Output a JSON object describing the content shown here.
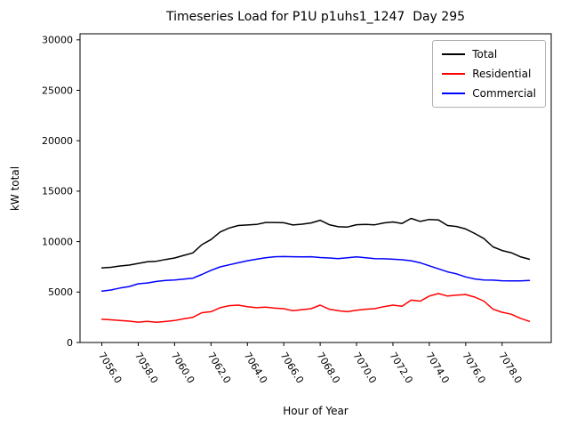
{
  "chart_data": {
    "type": "line",
    "title": "Timeseries Load for P1U p1uhs1_1247  Day 295",
    "xlabel": "Hour of Year",
    "ylabel": "kW total",
    "xlim": [
      7054.8,
      7080.7
    ],
    "ylim": [
      0,
      30600
    ],
    "grid": false,
    "legend_position": "upper right",
    "xticks": {
      "values": [
        7056,
        7058,
        7060,
        7062,
        7064,
        7066,
        7068,
        7070,
        7072,
        7074,
        7076,
        7078
      ],
      "labels": [
        "7056.0",
        "7058.0",
        "7060.0",
        "7062.0",
        "7064.0",
        "7066.0",
        "7068.0",
        "7070.0",
        "7072.0",
        "7074.0",
        "7076.0",
        "7078.0"
      ]
    },
    "yticks": {
      "values": [
        0,
        5000,
        10000,
        15000,
        20000,
        25000,
        30000
      ],
      "labels": [
        "0",
        "5000",
        "10000",
        "15000",
        "20000",
        "25000",
        "30000"
      ]
    },
    "x": [
      7056,
      7056.5,
      7057,
      7057.5,
      7058,
      7058.5,
      7059,
      7059.5,
      7060,
      7060.5,
      7061,
      7061.5,
      7062,
      7062.5,
      7063,
      7063.5,
      7064,
      7064.5,
      7065,
      7065.5,
      7066,
      7066.5,
      7067,
      7067.5,
      7068,
      7068.5,
      7069,
      7069.5,
      7070,
      7070.5,
      7071,
      7071.5,
      7072,
      7072.5,
      7073,
      7073.5,
      7074,
      7074.5,
      7075,
      7075.5,
      7076,
      7076.5,
      7077,
      7077.5,
      7078,
      7078.5,
      7079,
      7079.5
    ],
    "series": [
      {
        "name": "Total",
        "color": "#000000",
        "values": [
          7400,
          7450,
          7580,
          7670,
          7840,
          8000,
          8050,
          8230,
          8380,
          8630,
          8880,
          9700,
          10200,
          10950,
          11350,
          11600,
          11650,
          11700,
          11900,
          11900,
          11870,
          11650,
          11730,
          11850,
          12120,
          11680,
          11470,
          11450,
          11680,
          11700,
          11670,
          11850,
          11950,
          11800,
          12300,
          12000,
          12200,
          12150,
          11600,
          11500,
          11250,
          10800,
          10300,
          9480,
          9120,
          8900,
          8500,
          8250
        ]
      },
      {
        "name": "Residential",
        "color": "#ff0000",
        "values": [
          2300,
          2250,
          2180,
          2120,
          2020,
          2100,
          2000,
          2080,
          2180,
          2350,
          2500,
          2950,
          3050,
          3450,
          3650,
          3700,
          3550,
          3450,
          3500,
          3400,
          3350,
          3150,
          3250,
          3350,
          3700,
          3300,
          3150,
          3050,
          3200,
          3300,
          3350,
          3550,
          3700,
          3600,
          4200,
          4100,
          4600,
          4850,
          4600,
          4700,
          4750,
          4500,
          4100,
          3300,
          3000,
          2800,
          2400,
          2100
        ]
      },
      {
        "name": "Commercial",
        "color": "#0000ff",
        "values": [
          5100,
          5200,
          5400,
          5550,
          5820,
          5900,
          6050,
          6150,
          6200,
          6280,
          6380,
          6750,
          7150,
          7500,
          7700,
          7900,
          8100,
          8250,
          8400,
          8500,
          8520,
          8500,
          8480,
          8500,
          8420,
          8380,
          8320,
          8400,
          8480,
          8400,
          8320,
          8300,
          8250,
          8200,
          8100,
          7900,
          7600,
          7300,
          7000,
          6800,
          6500,
          6300,
          6200,
          6180,
          6120,
          6100,
          6100,
          6150
        ]
      }
    ]
  }
}
